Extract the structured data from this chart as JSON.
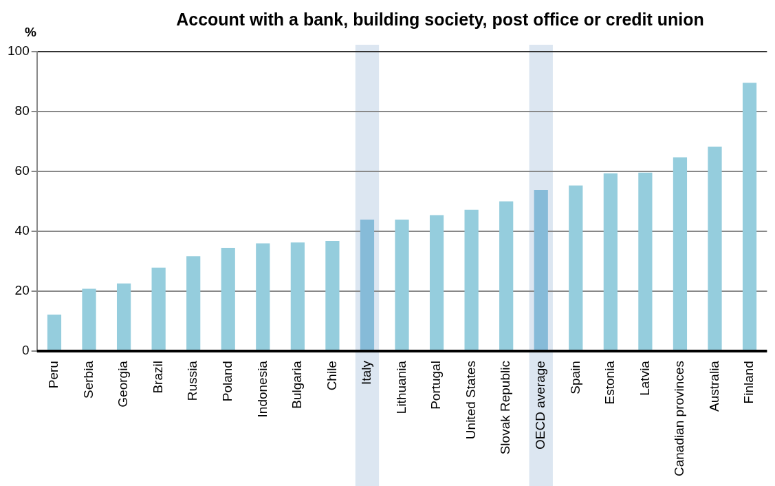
{
  "chart_data": {
    "type": "bar",
    "title": "Account with a bank, building society, post office or credit union",
    "ylabel": "%",
    "categories": [
      "Peru",
      "Serbia",
      "Georgia",
      "Brazil",
      "Russia",
      "Poland",
      "Indonesia",
      "Bulgaria",
      "Chile",
      "Italy",
      "Lithuania",
      "Portugal",
      "United States",
      "Slovak Republic",
      "OECD average",
      "Spain",
      "Estonia",
      "Latvia",
      "Canadian provinces",
      "Australia",
      "Finland"
    ],
    "values": [
      12.2,
      20.8,
      22.6,
      27.9,
      31.7,
      34.5,
      36,
      36.3,
      36.8,
      43.9,
      43.9,
      45.4,
      47.2,
      50,
      53.8,
      55.3,
      59.4,
      59.6,
      64.7,
      68.3,
      89.6
    ],
    "colors": [
      "#95cddd",
      "#95cddd",
      "#95cddd",
      "#95cddd",
      "#95cddd",
      "#95cddd",
      "#95cddd",
      "#95cddd",
      "#95cddd",
      "#86bbd8",
      "#95cddd",
      "#95cddd",
      "#95cddd",
      "#95cddd",
      "#86bbd8",
      "#95cddd",
      "#95cddd",
      "#95cddd",
      "#95cddd",
      "#95cddd",
      "#95cddd"
    ],
    "ylim": [
      0,
      100
    ],
    "yticks": [
      0,
      20,
      40,
      60,
      80,
      100
    ],
    "grid": "y",
    "legend": false,
    "bands": [
      {
        "axis": "x",
        "from": "Italy",
        "to": "Italy",
        "color": "#dce6f1"
      },
      {
        "axis": "x",
        "from": "OECD average",
        "to": "OECD average",
        "color": "#dce6f1"
      }
    ]
  }
}
